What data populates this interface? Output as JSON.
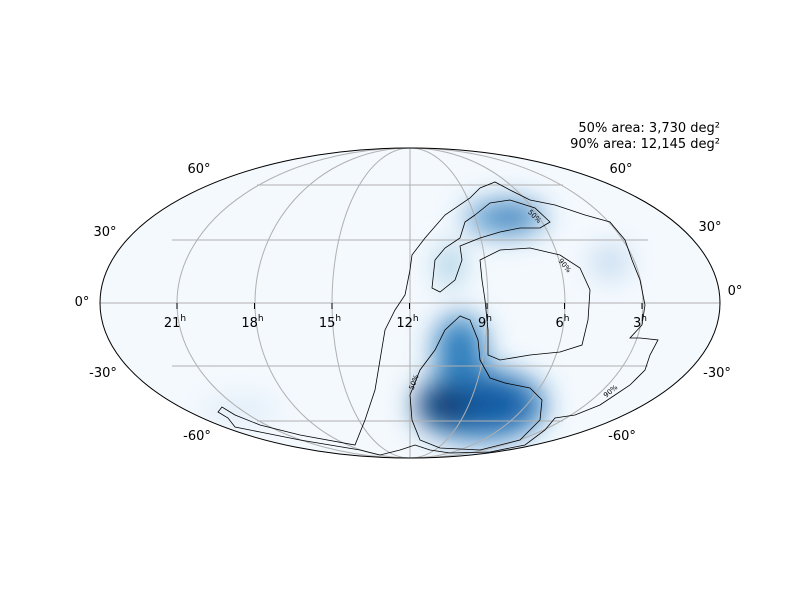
{
  "annotations": [
    "50% area: 3,730 deg²",
    "90% area: 12,145 deg²"
  ],
  "ra_labels": [
    {
      "hours": "21",
      "unit": "h"
    },
    {
      "hours": "18",
      "unit": "h"
    },
    {
      "hours": "15",
      "unit": "h"
    },
    {
      "hours": "12",
      "unit": "h"
    },
    {
      "hours": "9",
      "unit": "h"
    },
    {
      "hours": "6",
      "unit": "h"
    },
    {
      "hours": "3",
      "unit": "h"
    }
  ],
  "dec_labels_left": [
    "60°",
    "30°",
    "0°",
    "-30°",
    "-60°"
  ],
  "dec_labels_right": [
    "60°",
    "30°",
    "0°",
    "-30°",
    "-60°"
  ],
  "contour_labels": [
    "50%",
    "90%",
    "50%",
    "90%"
  ]
}
